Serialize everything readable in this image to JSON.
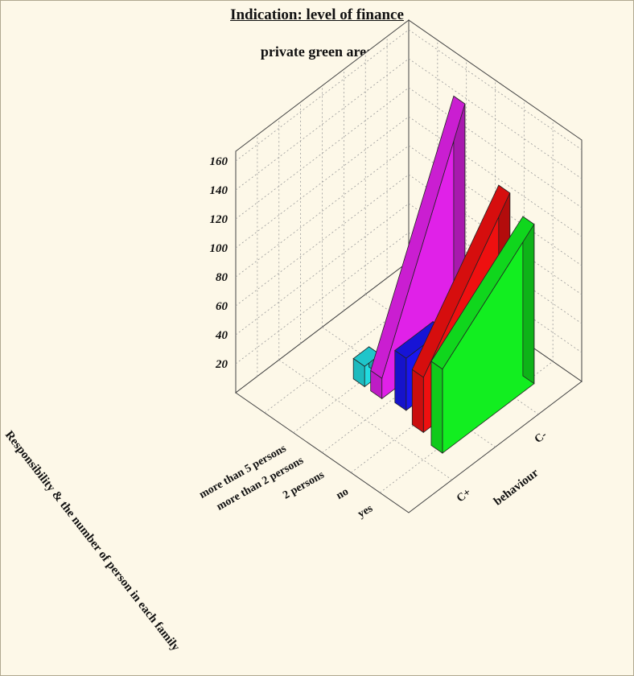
{
  "chart_data": {
    "type": "bar",
    "title": "Indication: level of finance",
    "subtitle": "private green area",
    "categories": [
      "more than 5 persons",
      "more than 2 persons",
      "2 persons",
      "no",
      "yes"
    ],
    "x_categories": [
      "C+",
      "C-"
    ],
    "xlabel": "behaviour",
    "ylabel": "Responsibility & the number of person in each family",
    "zticks": [
      "20",
      "40",
      "60",
      "80",
      "100",
      "120",
      "140",
      "160"
    ],
    "zlim": [
      0,
      160
    ],
    "grid": true,
    "bars": [
      {
        "category": "more than 5 persons",
        "front": 14,
        "back": 14,
        "color": "#22dbe0"
      },
      {
        "category": "more than 2 persons",
        "front": 14,
        "back": 160,
        "color": "#e021e8"
      },
      {
        "category": "2 persons",
        "front": 36,
        "back": 36,
        "color": "#1a16ee"
      },
      {
        "category": "no",
        "front": 38,
        "back": 120,
        "color": "#ee1010"
      },
      {
        "category": "yes",
        "front": 58,
        "back": 110,
        "color": "#12ee20"
      }
    ]
  }
}
